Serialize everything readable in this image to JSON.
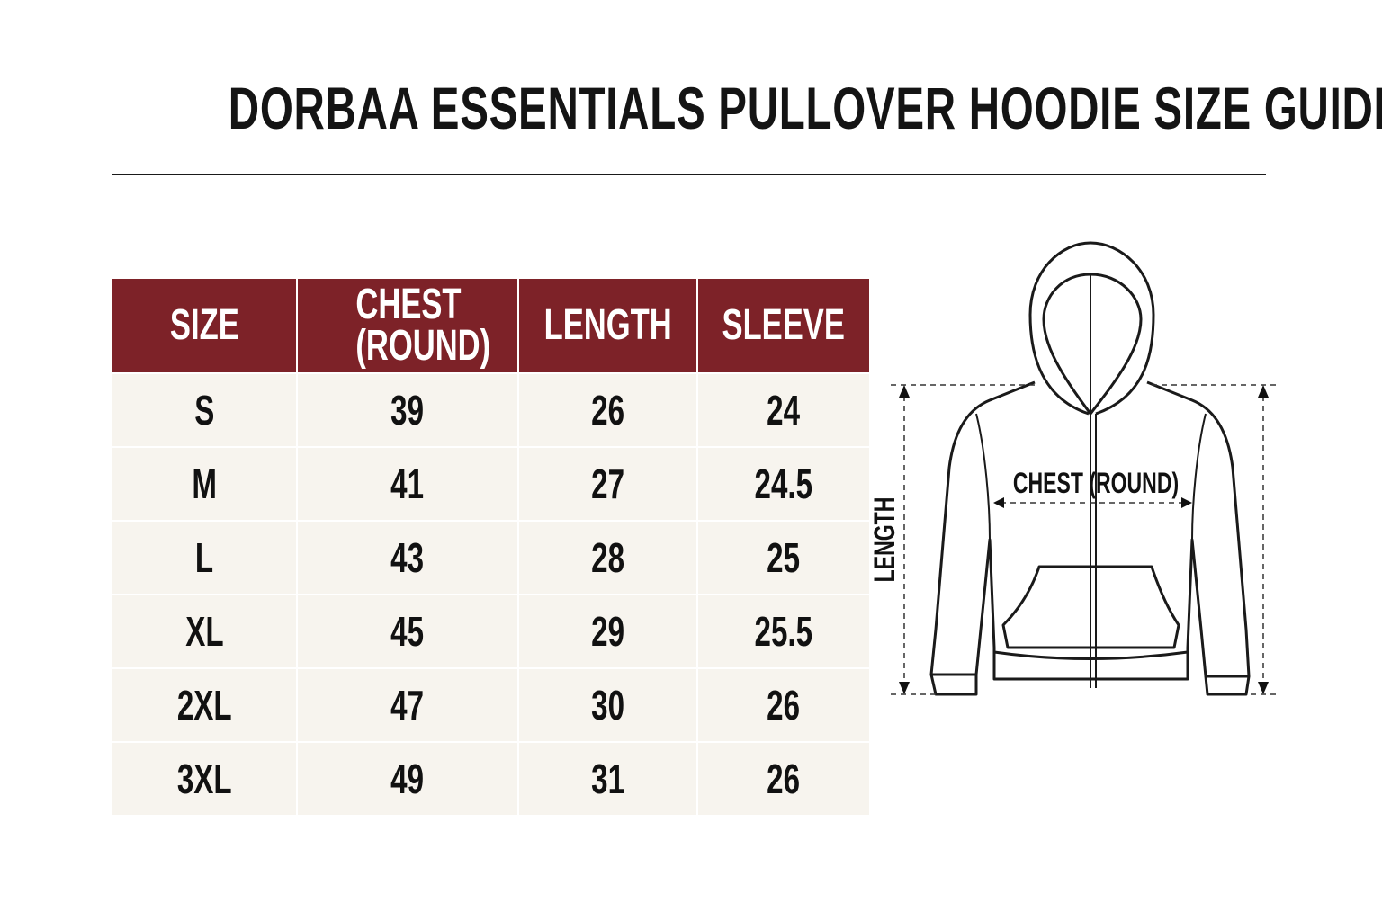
{
  "title": "DORBAA ESSENTIALS PULLOVER HOODIE SIZE GUIDE",
  "table": {
    "headers": [
      "SIZE",
      "CHEST (ROUND)",
      "LENGTH",
      "SLEEVE"
    ],
    "rows": [
      [
        "S",
        "39",
        "26",
        "24"
      ],
      [
        "M",
        "41",
        "27",
        "24.5"
      ],
      [
        "L",
        "43",
        "28",
        "25"
      ],
      [
        "XL",
        "45",
        "29",
        "25.5"
      ],
      [
        "2XL",
        "47",
        "30",
        "26"
      ],
      [
        "3XL",
        "49",
        "31",
        "26"
      ]
    ]
  },
  "diagram": {
    "chest_label": "CHEST (ROUND)",
    "length_label": "LENGTH"
  },
  "colors": {
    "header_bg": "#7d2228",
    "row_bg": "#f7f4ee"
  }
}
